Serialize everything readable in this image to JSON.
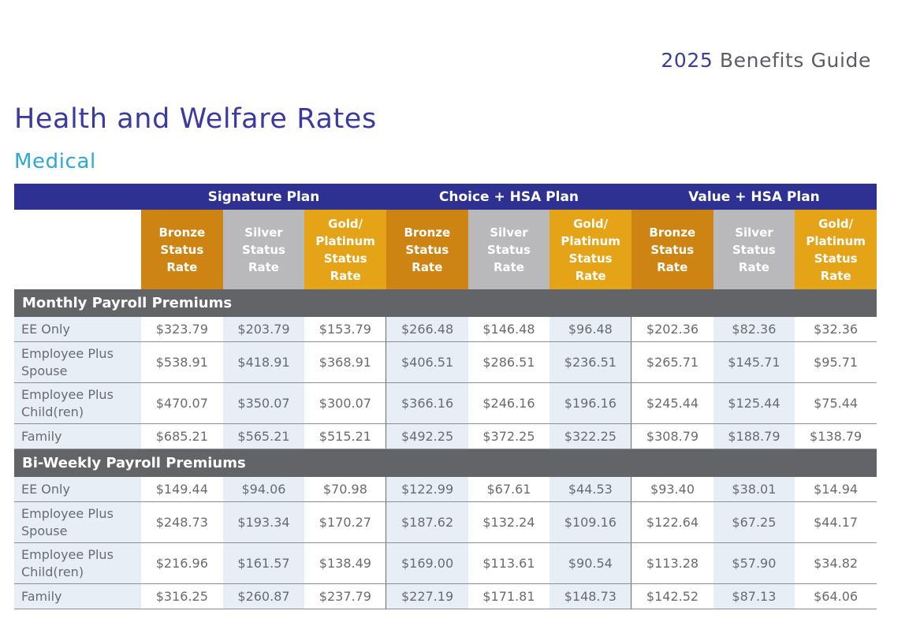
{
  "header": {
    "year": "2025",
    "guide_label": "Benefits Guide"
  },
  "page_title": "Health and Welfare Rates",
  "section_title": "Medical",
  "table": {
    "plans": [
      "Signature Plan",
      "Choice + HSA Plan",
      "Value + HSA Plan"
    ],
    "tiers": [
      {
        "line1": "Bronze",
        "line2": "Status",
        "line3": "Rate",
        "line4": ""
      },
      {
        "line1": "Silver",
        "line2": "Status",
        "line3": "Rate",
        "line4": ""
      },
      {
        "line1": "Gold/",
        "line2": "Platinum",
        "line3": "Status",
        "line4": "Rate"
      }
    ],
    "sections": [
      {
        "title": "Monthly Payroll Premiums",
        "rows": [
          {
            "label": "EE Only",
            "values": [
              "$323.79",
              "$203.79",
              "$153.79",
              "$266.48",
              "$146.48",
              "$96.48",
              "$202.36",
              "$82.36",
              "$32.36"
            ]
          },
          {
            "label": "Employee Plus Spouse",
            "values": [
              "$538.91",
              "$418.91",
              "$368.91",
              "$406.51",
              "$286.51",
              "$236.51",
              "$265.71",
              "$145.71",
              "$95.71"
            ]
          },
          {
            "label": "Employee Plus Child(ren)",
            "values": [
              "$470.07",
              "$350.07",
              "$300.07",
              "$366.16",
              "$246.16",
              "$196.16",
              "$245.44",
              "$125.44",
              "$75.44"
            ]
          },
          {
            "label": "Family",
            "values": [
              "$685.21",
              "$565.21",
              "$515.21",
              "$492.25",
              "$372.25",
              "$322.25",
              "$308.79",
              "$188.79",
              "$138.79"
            ]
          }
        ]
      },
      {
        "title": "Bi-Weekly Payroll Premiums",
        "rows": [
          {
            "label": "EE Only",
            "values": [
              "$149.44",
              "$94.06",
              "$70.98",
              "$122.99",
              "$67.61",
              "$44.53",
              "$93.40",
              "$38.01",
              "$14.94"
            ]
          },
          {
            "label": "Employee Plus Spouse",
            "values": [
              "$248.73",
              "$193.34",
              "$170.27",
              "$187.62",
              "$132.24",
              "$109.16",
              "$122.64",
              "$67.25",
              "$44.17"
            ]
          },
          {
            "label": "Employee Plus Child(ren)",
            "values": [
              "$216.96",
              "$161.57",
              "$138.49",
              "$169.00",
              "$113.61",
              "$90.54",
              "$113.28",
              "$57.90",
              "$34.82"
            ]
          },
          {
            "label": "Family",
            "values": [
              "$316.25",
              "$260.87",
              "$237.79",
              "$227.19",
              "$171.81",
              "$148.73",
              "$142.52",
              "$87.13",
              "$64.06"
            ]
          }
        ]
      }
    ]
  }
}
